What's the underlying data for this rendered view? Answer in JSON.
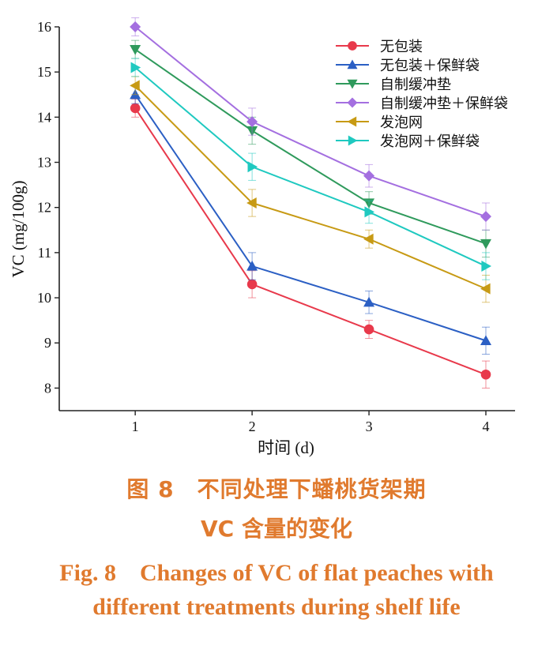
{
  "chart_data": {
    "type": "line",
    "x": [
      1,
      2,
      3,
      4
    ],
    "xlabel": "时间 (d)",
    "ylabel": "VC (mg/100g)",
    "xlim": [
      0.35,
      4.25
    ],
    "ylim": [
      7.5,
      16
    ],
    "xticks": [
      1,
      2,
      3,
      4
    ],
    "yticks": [
      8,
      9,
      10,
      11,
      12,
      13,
      14,
      15,
      16
    ],
    "legend_position": "top-right",
    "grid": false,
    "series": [
      {
        "name": "无包装",
        "color": "#e8394b",
        "marker": "circle",
        "values": [
          14.2,
          10.3,
          9.3,
          8.3
        ],
        "errors": [
          0.2,
          0.3,
          0.2,
          0.3
        ]
      },
      {
        "name": "无包装＋保鲜袋",
        "color": "#2b5fc4",
        "marker": "triangle-up",
        "values": [
          14.5,
          10.7,
          9.9,
          9.05
        ],
        "errors": [
          0.2,
          0.3,
          0.25,
          0.3
        ]
      },
      {
        "name": "自制缓冲垫",
        "color": "#2f9a5c",
        "marker": "triangle-down",
        "values": [
          15.5,
          13.7,
          12.1,
          11.2
        ],
        "errors": [
          0.2,
          0.3,
          0.25,
          0.3
        ]
      },
      {
        "name": "自制缓冲垫＋保鲜袋",
        "color": "#a46fe0",
        "marker": "diamond",
        "values": [
          16.0,
          13.9,
          12.7,
          11.8
        ],
        "errors": [
          0.2,
          0.3,
          0.25,
          0.3
        ]
      },
      {
        "name": "发泡网",
        "color": "#c79a14",
        "marker": "triangle-left",
        "values": [
          14.7,
          12.1,
          11.3,
          10.2
        ],
        "errors": [
          0.2,
          0.3,
          0.2,
          0.3
        ]
      },
      {
        "name": "发泡网＋保鲜袋",
        "color": "#1fc9c0",
        "marker": "triangle-right",
        "values": [
          15.1,
          12.9,
          11.9,
          10.7
        ],
        "errors": [
          0.2,
          0.3,
          0.25,
          0.3
        ]
      }
    ]
  },
  "caption": {
    "cn_line1": "图 8　不同处理下蟠桃货架期",
    "cn_line2": "VC 含量的变化",
    "en_line1": "Fig. 8　Changes of VC of flat peaches with",
    "en_line2": "different treatments during shelf life"
  }
}
